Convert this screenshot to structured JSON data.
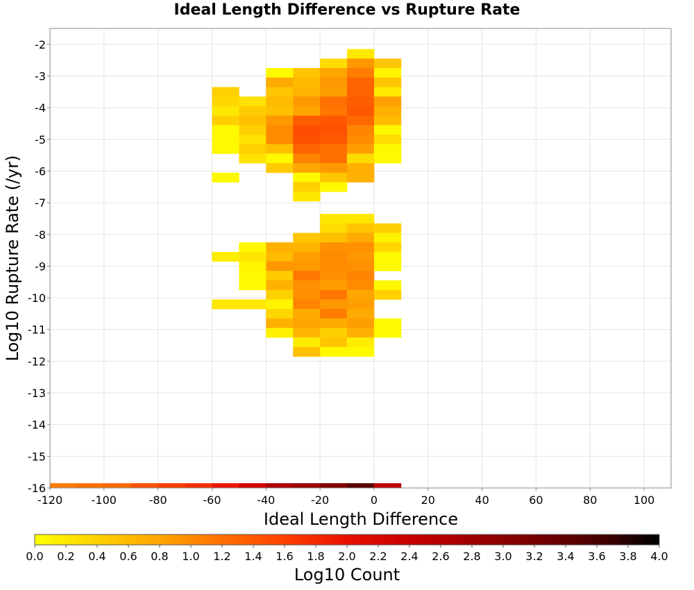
{
  "chart_data": {
    "type": "heatmap",
    "title": "Ideal Length Difference vs Rupture Rate",
    "xlabel": "Ideal Length Difference",
    "ylabel": "Log10 Rupture Rate (/yr)",
    "xlim": [
      -120,
      110
    ],
    "ylim": [
      -16,
      -1.5
    ],
    "x_ticks": [
      -120,
      -100,
      -80,
      -60,
      -40,
      -20,
      0,
      20,
      40,
      60,
      80,
      100
    ],
    "y_ticks": [
      -2,
      -3,
      -4,
      -5,
      -6,
      -7,
      -8,
      -9,
      -10,
      -11,
      -12,
      -13,
      -14,
      -15,
      -16
    ],
    "x_bin_width": 10,
    "y_bin_height": 0.3,
    "grid": true,
    "colorbar": {
      "label": "Log10 Count",
      "min": 0.0,
      "max": 4.0,
      "ticks": [
        "0.0",
        "0.2",
        "0.4",
        "0.6",
        "0.8",
        "1.0",
        "1.2",
        "1.4",
        "1.6",
        "1.8",
        "2.0",
        "2.2",
        "2.4",
        "2.6",
        "2.8",
        "3.0",
        "3.2",
        "3.4",
        "3.6",
        "3.8",
        "4.0"
      ],
      "colors": [
        "#ffff00",
        "#ffd000",
        "#ffa500",
        "#ff7000",
        "#ff4000",
        "#e81000",
        "#c80000",
        "#a00000",
        "#780000",
        "#480000",
        "#000000"
      ]
    },
    "bottom_row": {
      "y": -16,
      "cells": [
        {
          "x": -120,
          "v": 1.1
        },
        {
          "x": -110,
          "v": 1.2
        },
        {
          "x": -100,
          "v": 1.25
        },
        {
          "x": -90,
          "v": 1.45
        },
        {
          "x": -80,
          "v": 1.6
        },
        {
          "x": -70,
          "v": 1.75
        },
        {
          "x": -60,
          "v": 1.95
        },
        {
          "x": -50,
          "v": 2.3
        },
        {
          "x": -40,
          "v": 2.7
        },
        {
          "x": -30,
          "v": 2.85
        },
        {
          "x": -20,
          "v": 3.1
        },
        {
          "x": -10,
          "v": 3.45
        },
        {
          "x": 0,
          "v": 2.5
        }
      ]
    },
    "cells": [
      {
        "x": -10,
        "y": -2.3,
        "v": 0.2
      },
      {
        "x": -20,
        "y": -2.6,
        "v": 0.3
      },
      {
        "x": -10,
        "y": -2.6,
        "v": 0.9
      },
      {
        "x": 0,
        "y": -2.6,
        "v": 0.5
      },
      {
        "x": -40,
        "y": -2.9,
        "v": 0.05
      },
      {
        "x": -30,
        "y": -2.9,
        "v": 0.5
      },
      {
        "x": -20,
        "y": -2.9,
        "v": 0.8
      },
      {
        "x": -10,
        "y": -2.9,
        "v": 1.1
      },
      {
        "x": 0,
        "y": -2.9,
        "v": 0.1
      },
      {
        "x": -40,
        "y": -3.2,
        "v": 0.75
      },
      {
        "x": -30,
        "y": -3.2,
        "v": 0.6
      },
      {
        "x": -20,
        "y": -3.2,
        "v": 0.9
      },
      {
        "x": -10,
        "y": -3.2,
        "v": 1.3
      },
      {
        "x": 0,
        "y": -3.2,
        "v": 0.5
      },
      {
        "x": -60,
        "y": -3.5,
        "v": 0.4
      },
      {
        "x": -40,
        "y": -3.5,
        "v": 0.5
      },
      {
        "x": -30,
        "y": -3.5,
        "v": 0.65
      },
      {
        "x": -20,
        "y": -3.5,
        "v": 0.85
      },
      {
        "x": -10,
        "y": -3.5,
        "v": 1.3
      },
      {
        "x": 0,
        "y": -3.5,
        "v": 0.2
      },
      {
        "x": -60,
        "y": -3.8,
        "v": 0.35
      },
      {
        "x": -50,
        "y": -3.8,
        "v": 0.25
      },
      {
        "x": -40,
        "y": -3.8,
        "v": 0.6
      },
      {
        "x": -30,
        "y": -3.8,
        "v": 0.9
      },
      {
        "x": -20,
        "y": -3.8,
        "v": 1.2
      },
      {
        "x": -10,
        "y": -3.8,
        "v": 1.35
      },
      {
        "x": 0,
        "y": -3.8,
        "v": 0.85
      },
      {
        "x": -60,
        "y": -4.1,
        "v": 0.2
      },
      {
        "x": -50,
        "y": -4.1,
        "v": 0.45
      },
      {
        "x": -40,
        "y": -4.1,
        "v": 0.55
      },
      {
        "x": -30,
        "y": -4.1,
        "v": 0.8
      },
      {
        "x": -20,
        "y": -4.1,
        "v": 1.15
      },
      {
        "x": -10,
        "y": -4.1,
        "v": 1.4
      },
      {
        "x": 0,
        "y": -4.1,
        "v": 0.7
      },
      {
        "x": -60,
        "y": -4.4,
        "v": 0.4
      },
      {
        "x": -50,
        "y": -4.4,
        "v": 0.55
      },
      {
        "x": -40,
        "y": -4.4,
        "v": 0.9
      },
      {
        "x": -30,
        "y": -4.4,
        "v": 1.35
      },
      {
        "x": -20,
        "y": -4.4,
        "v": 1.4
      },
      {
        "x": -10,
        "y": -4.4,
        "v": 1.25
      },
      {
        "x": 0,
        "y": -4.4,
        "v": 0.6
      },
      {
        "x": -60,
        "y": -4.7,
        "v": 0.05
      },
      {
        "x": -50,
        "y": -4.7,
        "v": 0.4
      },
      {
        "x": -40,
        "y": -4.7,
        "v": 1.0
      },
      {
        "x": -30,
        "y": -4.7,
        "v": 1.5
      },
      {
        "x": -20,
        "y": -4.7,
        "v": 1.45
      },
      {
        "x": -10,
        "y": -4.7,
        "v": 1.05
      },
      {
        "x": 0,
        "y": -4.7,
        "v": 0.05
      },
      {
        "x": -60,
        "y": -5.0,
        "v": 0.05
      },
      {
        "x": -50,
        "y": -5.0,
        "v": 0.25
      },
      {
        "x": -40,
        "y": -5.0,
        "v": 1.0
      },
      {
        "x": -30,
        "y": -5.0,
        "v": 1.45
      },
      {
        "x": -20,
        "y": -5.0,
        "v": 1.4
      },
      {
        "x": -10,
        "y": -5.0,
        "v": 1.0
      },
      {
        "x": 0,
        "y": -5.0,
        "v": 0.3
      },
      {
        "x": -60,
        "y": -5.3,
        "v": 0.05
      },
      {
        "x": -50,
        "y": -5.3,
        "v": 0.4
      },
      {
        "x": -40,
        "y": -5.3,
        "v": 0.55
      },
      {
        "x": -30,
        "y": -5.3,
        "v": 1.3
      },
      {
        "x": -20,
        "y": -5.3,
        "v": 1.2
      },
      {
        "x": -10,
        "y": -5.3,
        "v": 0.85
      },
      {
        "x": 0,
        "y": -5.3,
        "v": 0.05
      },
      {
        "x": -50,
        "y": -5.6,
        "v": 0.25
      },
      {
        "x": -40,
        "y": -5.6,
        "v": 0.05
      },
      {
        "x": -30,
        "y": -5.6,
        "v": 1.05
      },
      {
        "x": -20,
        "y": -5.6,
        "v": 1.2
      },
      {
        "x": -10,
        "y": -5.6,
        "v": 0.3
      },
      {
        "x": 0,
        "y": -5.6,
        "v": 0.05
      },
      {
        "x": -40,
        "y": -5.9,
        "v": 0.45
      },
      {
        "x": -30,
        "y": -5.9,
        "v": 0.8
      },
      {
        "x": -20,
        "y": -5.9,
        "v": 0.9
      },
      {
        "x": -10,
        "y": -5.9,
        "v": 0.7
      },
      {
        "x": -60,
        "y": -6.2,
        "v": 0.05
      },
      {
        "x": -30,
        "y": -6.2,
        "v": 0.05
      },
      {
        "x": -20,
        "y": -6.2,
        "v": 0.5
      },
      {
        "x": -10,
        "y": -6.2,
        "v": 0.7
      },
      {
        "x": -30,
        "y": -6.5,
        "v": 0.4
      },
      {
        "x": -20,
        "y": -6.5,
        "v": 0.05
      },
      {
        "x": -30,
        "y": -6.8,
        "v": 0.2
      },
      {
        "x": -20,
        "y": -7.5,
        "v": 0.2
      },
      {
        "x": -10,
        "y": -7.5,
        "v": 0.2
      },
      {
        "x": -20,
        "y": -7.8,
        "v": 0.3
      },
      {
        "x": -10,
        "y": -7.8,
        "v": 0.5
      },
      {
        "x": 0,
        "y": -7.8,
        "v": 0.4
      },
      {
        "x": -30,
        "y": -8.1,
        "v": 0.5
      },
      {
        "x": -20,
        "y": -8.1,
        "v": 0.55
      },
      {
        "x": -10,
        "y": -8.1,
        "v": 0.75
      },
      {
        "x": 0,
        "y": -8.1,
        "v": 0.1
      },
      {
        "x": -50,
        "y": -8.4,
        "v": 0.05
      },
      {
        "x": -40,
        "y": -8.4,
        "v": 0.7
      },
      {
        "x": -30,
        "y": -8.4,
        "v": 0.65
      },
      {
        "x": -20,
        "y": -8.4,
        "v": 0.95
      },
      {
        "x": -10,
        "y": -8.4,
        "v": 0.95
      },
      {
        "x": 0,
        "y": -8.4,
        "v": 0.35
      },
      {
        "x": -60,
        "y": -8.7,
        "v": 0.15
      },
      {
        "x": -50,
        "y": -8.7,
        "v": 0.2
      },
      {
        "x": -40,
        "y": -8.7,
        "v": 0.6
      },
      {
        "x": -30,
        "y": -8.7,
        "v": 0.85
      },
      {
        "x": -20,
        "y": -8.7,
        "v": 1.0
      },
      {
        "x": -10,
        "y": -8.7,
        "v": 0.9
      },
      {
        "x": 0,
        "y": -8.7,
        "v": 0.05
      },
      {
        "x": -50,
        "y": -9.0,
        "v": 0.1
      },
      {
        "x": -40,
        "y": -9.0,
        "v": 0.9
      },
      {
        "x": -30,
        "y": -9.0,
        "v": 0.9
      },
      {
        "x": -20,
        "y": -9.0,
        "v": 1.0
      },
      {
        "x": -10,
        "y": -9.0,
        "v": 0.95
      },
      {
        "x": 0,
        "y": -9.0,
        "v": 0.05
      },
      {
        "x": -50,
        "y": -9.3,
        "v": 0.05
      },
      {
        "x": -40,
        "y": -9.3,
        "v": 0.45
      },
      {
        "x": -30,
        "y": -9.3,
        "v": 1.15
      },
      {
        "x": -20,
        "y": -9.3,
        "v": 0.95
      },
      {
        "x": -10,
        "y": -9.3,
        "v": 1.05
      },
      {
        "x": -50,
        "y": -9.6,
        "v": 0.05
      },
      {
        "x": -40,
        "y": -9.6,
        "v": 0.7
      },
      {
        "x": -30,
        "y": -9.6,
        "v": 0.95
      },
      {
        "x": -20,
        "y": -9.6,
        "v": 0.85
      },
      {
        "x": -10,
        "y": -9.6,
        "v": 1.0
      },
      {
        "x": 0,
        "y": -9.6,
        "v": 0.05
      },
      {
        "x": -40,
        "y": -9.9,
        "v": 0.4
      },
      {
        "x": -30,
        "y": -9.9,
        "v": 0.95
      },
      {
        "x": -20,
        "y": -9.9,
        "v": 1.15
      },
      {
        "x": -10,
        "y": -9.9,
        "v": 0.8
      },
      {
        "x": 0,
        "y": -9.9,
        "v": 0.4
      },
      {
        "x": -60,
        "y": -10.2,
        "v": 0.2
      },
      {
        "x": -50,
        "y": -10.2,
        "v": 0.2
      },
      {
        "x": -40,
        "y": -10.2,
        "v": 0.1
      },
      {
        "x": -30,
        "y": -10.2,
        "v": 1.05
      },
      {
        "x": -20,
        "y": -10.2,
        "v": 0.9
      },
      {
        "x": -10,
        "y": -10.2,
        "v": 0.85
      },
      {
        "x": -40,
        "y": -10.5,
        "v": 0.35
      },
      {
        "x": -30,
        "y": -10.5,
        "v": 0.75
      },
      {
        "x": -20,
        "y": -10.5,
        "v": 1.1
      },
      {
        "x": -10,
        "y": -10.5,
        "v": 0.75
      },
      {
        "x": -40,
        "y": -10.8,
        "v": 0.7
      },
      {
        "x": -30,
        "y": -10.8,
        "v": 0.8
      },
      {
        "x": -20,
        "y": -10.8,
        "v": 0.75
      },
      {
        "x": -10,
        "y": -10.8,
        "v": 0.85
      },
      {
        "x": 0,
        "y": -10.8,
        "v": 0.05
      },
      {
        "x": -40,
        "y": -11.1,
        "v": 0.1
      },
      {
        "x": -30,
        "y": -11.1,
        "v": 0.65
      },
      {
        "x": -20,
        "y": -11.1,
        "v": 0.4
      },
      {
        "x": -10,
        "y": -11.1,
        "v": 0.7
      },
      {
        "x": 0,
        "y": -11.1,
        "v": 0.05
      },
      {
        "x": -30,
        "y": -11.4,
        "v": 0.15
      },
      {
        "x": -20,
        "y": -11.4,
        "v": 0.5
      },
      {
        "x": -10,
        "y": -11.4,
        "v": 0.15
      },
      {
        "x": -30,
        "y": -11.7,
        "v": 0.55
      },
      {
        "x": -20,
        "y": -11.7,
        "v": 0.05
      },
      {
        "x": -10,
        "y": -11.7,
        "v": 0.05
      }
    ]
  }
}
